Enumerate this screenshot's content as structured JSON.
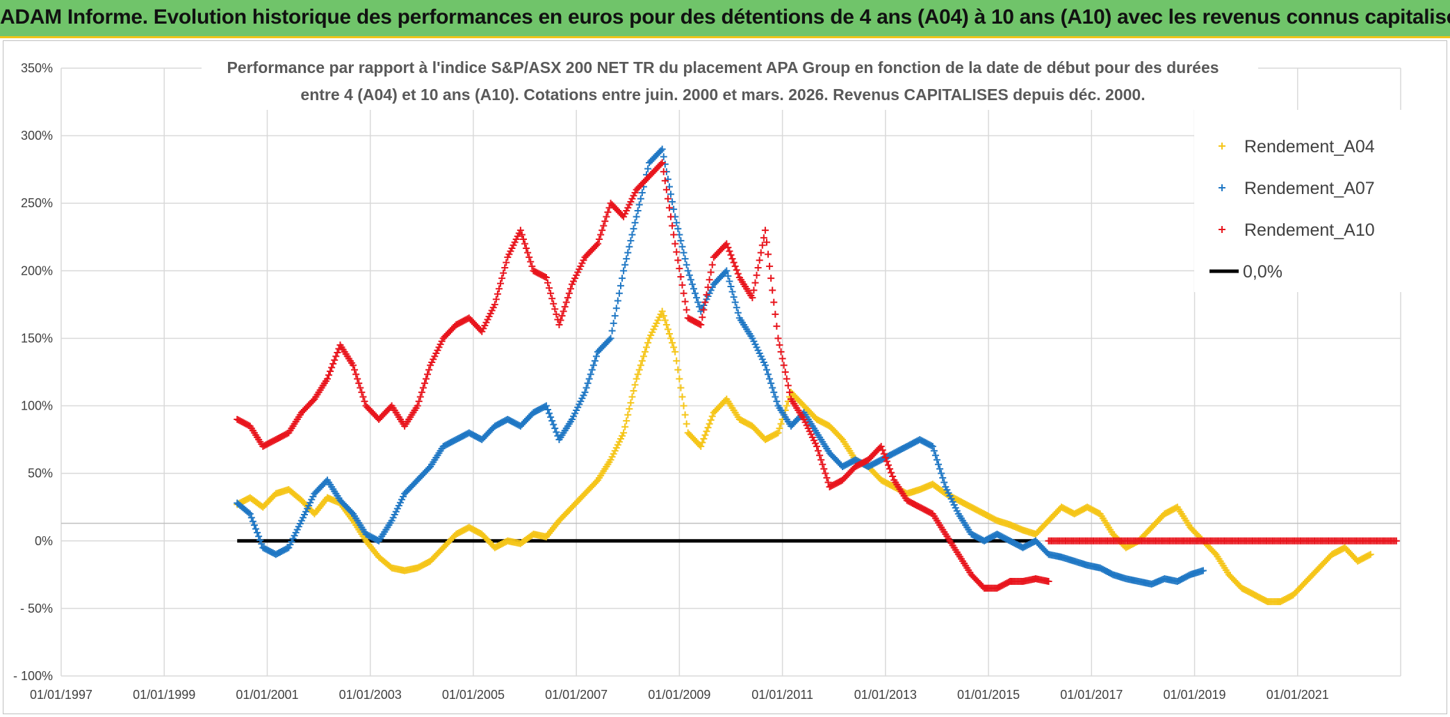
{
  "banner": {
    "title": "ADAM Informe. Evolution historique des performances en euros pour des détentions de 4 ans (A04) à 10 ans (A10) avec les revenus connus capitalisés"
  },
  "chart_data": {
    "type": "scatter",
    "subtitle_line1": "Performance par rapport à l'indice S&P/ASX 200 NET TR  du placement APA Group en fonction de la date de début pour des durées",
    "subtitle_line2": "entre 4 (A04) et 10 ans (A10). Cotations entre juin. 2000 et mars. 2026. Revenus CAPITALISES depuis déc. 2000.",
    "x_tick_labels": [
      "01/01/1997",
      "01/01/1999",
      "01/01/2001",
      "01/01/2003",
      "01/01/2005",
      "01/01/2007",
      "01/01/2009",
      "01/01/2011",
      "01/01/2013",
      "01/01/2015",
      "01/01/2017",
      "01/01/2019",
      "01/01/2021"
    ],
    "y_tick_labels": [
      "350%",
      "300%",
      "250%",
      "200%",
      "150%",
      "100%",
      "50%",
      "0%",
      "- 50%",
      "- 100%"
    ],
    "xlim": [
      "1997-01-01",
      "2023-01-01"
    ],
    "ylim": [
      -100,
      350
    ],
    "grid": true,
    "legend_position": "top-right",
    "colors": {
      "A04": "#f5c518",
      "A07": "#1f77c4",
      "A10": "#e8141c",
      "zero": "#000000"
    },
    "series": [
      {
        "name": "Rendement_A04",
        "marker": "+",
        "points": [
          [
            "2000-06",
            27
          ],
          [
            "2000-09",
            32
          ],
          [
            "2000-12",
            25
          ],
          [
            "2001-03",
            35
          ],
          [
            "2001-06",
            38
          ],
          [
            "2001-09",
            30
          ],
          [
            "2001-12",
            20
          ],
          [
            "2002-03",
            32
          ],
          [
            "2002-06",
            28
          ],
          [
            "2002-09",
            15
          ],
          [
            "2002-12",
            0
          ],
          [
            "2003-03",
            -12
          ],
          [
            "2003-06",
            -20
          ],
          [
            "2003-09",
            -22
          ],
          [
            "2003-12",
            -20
          ],
          [
            "2004-03",
            -15
          ],
          [
            "2004-06",
            -5
          ],
          [
            "2004-09",
            5
          ],
          [
            "2004-12",
            10
          ],
          [
            "2005-03",
            5
          ],
          [
            "2005-06",
            -5
          ],
          [
            "2005-09",
            0
          ],
          [
            "2005-12",
            -2
          ],
          [
            "2006-03",
            5
          ],
          [
            "2006-06",
            3
          ],
          [
            "2006-09",
            15
          ],
          [
            "2006-12",
            25
          ],
          [
            "2007-03",
            35
          ],
          [
            "2007-06",
            45
          ],
          [
            "2007-09",
            60
          ],
          [
            "2007-12",
            80
          ],
          [
            "2008-03",
            120
          ],
          [
            "2008-06",
            150
          ],
          [
            "2008-09",
            170
          ],
          [
            "2008-12",
            140
          ],
          [
            "2009-03",
            80
          ],
          [
            "2009-06",
            70
          ],
          [
            "2009-09",
            95
          ],
          [
            "2009-12",
            105
          ],
          [
            "2010-03",
            90
          ],
          [
            "2010-06",
            85
          ],
          [
            "2010-09",
            75
          ],
          [
            "2010-12",
            80
          ],
          [
            "2011-03",
            110
          ],
          [
            "2011-06",
            100
          ],
          [
            "2011-09",
            90
          ],
          [
            "2011-12",
            85
          ],
          [
            "2012-03",
            75
          ],
          [
            "2012-06",
            60
          ],
          [
            "2012-09",
            55
          ],
          [
            "2012-12",
            45
          ],
          [
            "2013-03",
            40
          ],
          [
            "2013-06",
            35
          ],
          [
            "2013-09",
            38
          ],
          [
            "2013-12",
            42
          ],
          [
            "2014-03",
            35
          ],
          [
            "2014-06",
            30
          ],
          [
            "2014-09",
            25
          ],
          [
            "2014-12",
            20
          ],
          [
            "2015-03",
            15
          ],
          [
            "2015-06",
            12
          ],
          [
            "2015-09",
            8
          ],
          [
            "2015-12",
            5
          ],
          [
            "2016-03",
            15
          ],
          [
            "2016-06",
            25
          ],
          [
            "2016-09",
            20
          ],
          [
            "2016-12",
            25
          ],
          [
            "2017-03",
            20
          ],
          [
            "2017-06",
            5
          ],
          [
            "2017-09",
            -5
          ],
          [
            "2017-12",
            0
          ],
          [
            "2018-03",
            10
          ],
          [
            "2018-06",
            20
          ],
          [
            "2018-09",
            25
          ],
          [
            "2018-12",
            10
          ],
          [
            "2019-03",
            0
          ],
          [
            "2019-06",
            -10
          ],
          [
            "2019-09",
            -25
          ],
          [
            "2019-12",
            -35
          ],
          [
            "2020-03",
            -40
          ],
          [
            "2020-06",
            -45
          ],
          [
            "2020-09",
            -45
          ],
          [
            "2020-12",
            -40
          ],
          [
            "2021-03",
            -30
          ],
          [
            "2021-06",
            -20
          ],
          [
            "2021-09",
            -10
          ],
          [
            "2021-12",
            -5
          ],
          [
            "2022-03",
            -15
          ],
          [
            "2022-06",
            -10
          ]
        ]
      },
      {
        "name": "Rendement_A07",
        "marker": "+",
        "points": [
          [
            "2000-06",
            28
          ],
          [
            "2000-09",
            20
          ],
          [
            "2000-12",
            -5
          ],
          [
            "2001-03",
            -10
          ],
          [
            "2001-06",
            -5
          ],
          [
            "2001-09",
            15
          ],
          [
            "2001-12",
            35
          ],
          [
            "2002-03",
            45
          ],
          [
            "2002-06",
            30
          ],
          [
            "2002-09",
            20
          ],
          [
            "2002-12",
            5
          ],
          [
            "2003-03",
            0
          ],
          [
            "2003-06",
            15
          ],
          [
            "2003-09",
            35
          ],
          [
            "2003-12",
            45
          ],
          [
            "2004-03",
            55
          ],
          [
            "2004-06",
            70
          ],
          [
            "2004-09",
            75
          ],
          [
            "2004-12",
            80
          ],
          [
            "2005-03",
            75
          ],
          [
            "2005-06",
            85
          ],
          [
            "2005-09",
            90
          ],
          [
            "2005-12",
            85
          ],
          [
            "2006-03",
            95
          ],
          [
            "2006-06",
            100
          ],
          [
            "2006-09",
            75
          ],
          [
            "2006-12",
            90
          ],
          [
            "2007-03",
            110
          ],
          [
            "2007-06",
            140
          ],
          [
            "2007-09",
            150
          ],
          [
            "2007-12",
            200
          ],
          [
            "2008-03",
            240
          ],
          [
            "2008-06",
            280
          ],
          [
            "2008-09",
            290
          ],
          [
            "2008-12",
            240
          ],
          [
            "2009-03",
            200
          ],
          [
            "2009-06",
            170
          ],
          [
            "2009-09",
            190
          ],
          [
            "2009-12",
            200
          ],
          [
            "2010-03",
            165
          ],
          [
            "2010-06",
            150
          ],
          [
            "2010-09",
            130
          ],
          [
            "2010-12",
            100
          ],
          [
            "2011-03",
            85
          ],
          [
            "2011-06",
            95
          ],
          [
            "2011-09",
            80
          ],
          [
            "2011-12",
            65
          ],
          [
            "2012-03",
            55
          ],
          [
            "2012-06",
            60
          ],
          [
            "2012-09",
            55
          ],
          [
            "2012-12",
            60
          ],
          [
            "2013-03",
            65
          ],
          [
            "2013-06",
            70
          ],
          [
            "2013-09",
            75
          ],
          [
            "2013-12",
            70
          ],
          [
            "2014-03",
            40
          ],
          [
            "2014-06",
            20
          ],
          [
            "2014-09",
            5
          ],
          [
            "2014-12",
            0
          ],
          [
            "2015-03",
            5
          ],
          [
            "2015-06",
            0
          ],
          [
            "2015-09",
            -5
          ],
          [
            "2015-12",
            0
          ],
          [
            "2016-03",
            -10
          ],
          [
            "2016-06",
            -12
          ],
          [
            "2016-09",
            -15
          ],
          [
            "2016-12",
            -18
          ],
          [
            "2017-03",
            -20
          ],
          [
            "2017-06",
            -25
          ],
          [
            "2017-09",
            -28
          ],
          [
            "2017-12",
            -30
          ],
          [
            "2018-03",
            -32
          ],
          [
            "2018-06",
            -28
          ],
          [
            "2018-09",
            -30
          ],
          [
            "2018-12",
            -25
          ],
          [
            "2019-03",
            -22
          ]
        ]
      },
      {
        "name": "Rendement_A10",
        "marker": "+",
        "points": [
          [
            "2000-06",
            90
          ],
          [
            "2000-09",
            85
          ],
          [
            "2000-12",
            70
          ],
          [
            "2001-03",
            75
          ],
          [
            "2001-06",
            80
          ],
          [
            "2001-09",
            95
          ],
          [
            "2001-12",
            105
          ],
          [
            "2002-03",
            120
          ],
          [
            "2002-06",
            145
          ],
          [
            "2002-09",
            130
          ],
          [
            "2002-12",
            100
          ],
          [
            "2003-03",
            90
          ],
          [
            "2003-06",
            100
          ],
          [
            "2003-09",
            85
          ],
          [
            "2003-12",
            100
          ],
          [
            "2004-03",
            130
          ],
          [
            "2004-06",
            150
          ],
          [
            "2004-09",
            160
          ],
          [
            "2004-12",
            165
          ],
          [
            "2005-03",
            155
          ],
          [
            "2005-06",
            175
          ],
          [
            "2005-09",
            210
          ],
          [
            "2005-12",
            230
          ],
          [
            "2006-03",
            200
          ],
          [
            "2006-06",
            195
          ],
          [
            "2006-09",
            160
          ],
          [
            "2006-12",
            190
          ],
          [
            "2007-03",
            210
          ],
          [
            "2007-06",
            220
          ],
          [
            "2007-09",
            250
          ],
          [
            "2007-12",
            240
          ],
          [
            "2008-03",
            260
          ],
          [
            "2008-06",
            270
          ],
          [
            "2008-09",
            280
          ],
          [
            "2008-12",
            220
          ],
          [
            "2009-03",
            165
          ],
          [
            "2009-06",
            160
          ],
          [
            "2009-09",
            210
          ],
          [
            "2009-12",
            220
          ],
          [
            "2010-03",
            195
          ],
          [
            "2010-06",
            180
          ],
          [
            "2010-09",
            230
          ],
          [
            "2010-12",
            150
          ],
          [
            "2011-03",
            105
          ],
          [
            "2011-06",
            90
          ],
          [
            "2011-09",
            70
          ],
          [
            "2011-12",
            40
          ],
          [
            "2012-03",
            45
          ],
          [
            "2012-06",
            55
          ],
          [
            "2012-09",
            60
          ],
          [
            "2012-12",
            70
          ],
          [
            "2013-03",
            45
          ],
          [
            "2013-06",
            30
          ],
          [
            "2013-09",
            25
          ],
          [
            "2013-12",
            20
          ],
          [
            "2014-03",
            5
          ],
          [
            "2014-06",
            -10
          ],
          [
            "2014-09",
            -25
          ],
          [
            "2014-12",
            -35
          ],
          [
            "2015-03",
            -35
          ],
          [
            "2015-06",
            -30
          ],
          [
            "2015-09",
            -30
          ],
          [
            "2015-12",
            -28
          ],
          [
            "2016-03",
            -30
          ]
        ]
      }
    ],
    "flat_zero_A10": {
      "from": "2016-03",
      "to": "2022-12",
      "value": 0
    },
    "reference_line": {
      "name": "0,0%",
      "from": "2000-06",
      "to": "2015-12",
      "value": 0
    },
    "legend": [
      {
        "key": "A04",
        "label": "Rendement_A04",
        "symbol": "+"
      },
      {
        "key": "A07",
        "label": "Rendement_A07",
        "symbol": "+"
      },
      {
        "key": "A10",
        "label": "Rendement_A10",
        "symbol": "+"
      },
      {
        "key": "zero",
        "label": "0,0%",
        "symbol": "line"
      }
    ]
  }
}
